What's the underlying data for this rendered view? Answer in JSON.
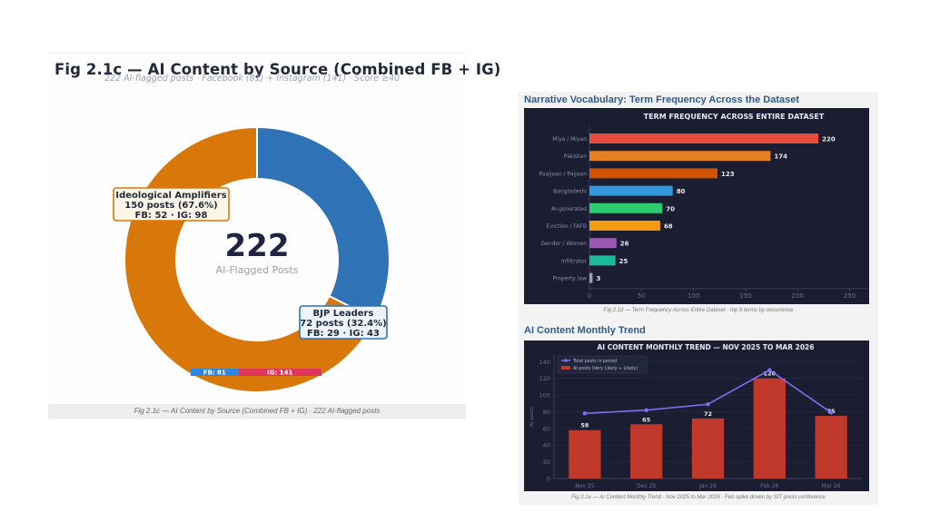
{
  "left_panel": {
    "title": "Fig 2.1c — AI Content by Source (Combined FB + IG)",
    "subtitle": "222 AI-flagged posts · Facebook (81) + Instagram (141) · Score ≥40",
    "caption": "Fig 2.1c — AI Content by Source (Combined FB + IG) · 222 AI-flagged posts"
  },
  "right_panel": {
    "section1_title": "Narrative Vocabulary: Term Frequency Across the Dataset",
    "section1_caption": "Fig 2.1d — Term Frequency Across Entire Dataset · top 9 terms by occurrence",
    "section2_title": "AI Content Monthly Trend",
    "section2_caption": "Fig 2.1e — AI Content Monthly Trend · Nov 2025 to Mar 2026 · Feb spike driven by SIT press conference"
  },
  "chart_data": [
    {
      "type": "pie",
      "variant": "donut",
      "title": "Fig 2.1c — AI Content by Source (Combined FB + IG)",
      "center_value": "222",
      "center_label": "AI-Flagged Posts",
      "slices": [
        {
          "name": "BJP Leaders",
          "value": 72,
          "percent": 32.4,
          "fb": 29,
          "ig": 43,
          "color": "#2f72b6",
          "label_lines": [
            "BJP Leaders",
            "72 posts (32.4%)",
            "FB: 29 · IG: 43"
          ]
        },
        {
          "name": "Ideological Amplifiers",
          "value": 150,
          "percent": 67.6,
          "fb": 52,
          "ig": 98,
          "color": "#d9780a",
          "label_lines": [
            "Ideological Amplifiers",
            "150 posts (67.6%)",
            "FB: 52 · IG: 98"
          ]
        }
      ],
      "platform_bar": [
        {
          "label": "FB: 81",
          "value": 81,
          "color": "#2e86de"
        },
        {
          "label": "IG: 141",
          "value": 141,
          "color": "#e0365e"
        }
      ]
    },
    {
      "type": "bar",
      "orientation": "horizontal",
      "title": "TERM FREQUENCY ACROSS ENTIRE DATASET",
      "categories": [
        "Miya / Miyan",
        "Pakistan",
        "Paaijaan / Paijaan",
        "Bangladeshi",
        "AI-generated",
        "Eviction / FAFB",
        "Gender / Women",
        "Infiltrator",
        "Property law"
      ],
      "values": [
        220,
        174,
        123,
        80,
        70,
        68,
        26,
        25,
        3
      ],
      "colors": [
        "#e74c3c",
        "#e67e22",
        "#d35400",
        "#3498db",
        "#2ecc71",
        "#f39c12",
        "#9b59b6",
        "#1abc9c",
        "#95a5a6"
      ],
      "xlim": [
        0,
        260
      ],
      "xticks": [
        0,
        50,
        100,
        150,
        200,
        250
      ],
      "grid": false
    },
    {
      "type": "bar",
      "title": "AI CONTENT MONTHLY TREND — NOV 2025 TO MAR 2026",
      "categories": [
        "Nov 25",
        "Dec 25",
        "Jan 26",
        "Feb 26",
        "Mar 26"
      ],
      "ylabel": "AI posts",
      "ylim": [
        0,
        148
      ],
      "yticks": [
        0,
        20,
        40,
        60,
        80,
        100,
        120,
        140
      ],
      "grid": true,
      "legend_position": "top-left",
      "series": [
        {
          "name": "AI posts (Very Likely + Likely)",
          "type": "bar",
          "values": [
            58,
            65,
            72,
            120,
            75
          ],
          "color": "#c0392b"
        },
        {
          "name": "Total posts in period",
          "type": "line",
          "values": [
            78,
            82,
            89,
            130,
            79
          ],
          "color": "#7b6ff0"
        }
      ]
    }
  ]
}
